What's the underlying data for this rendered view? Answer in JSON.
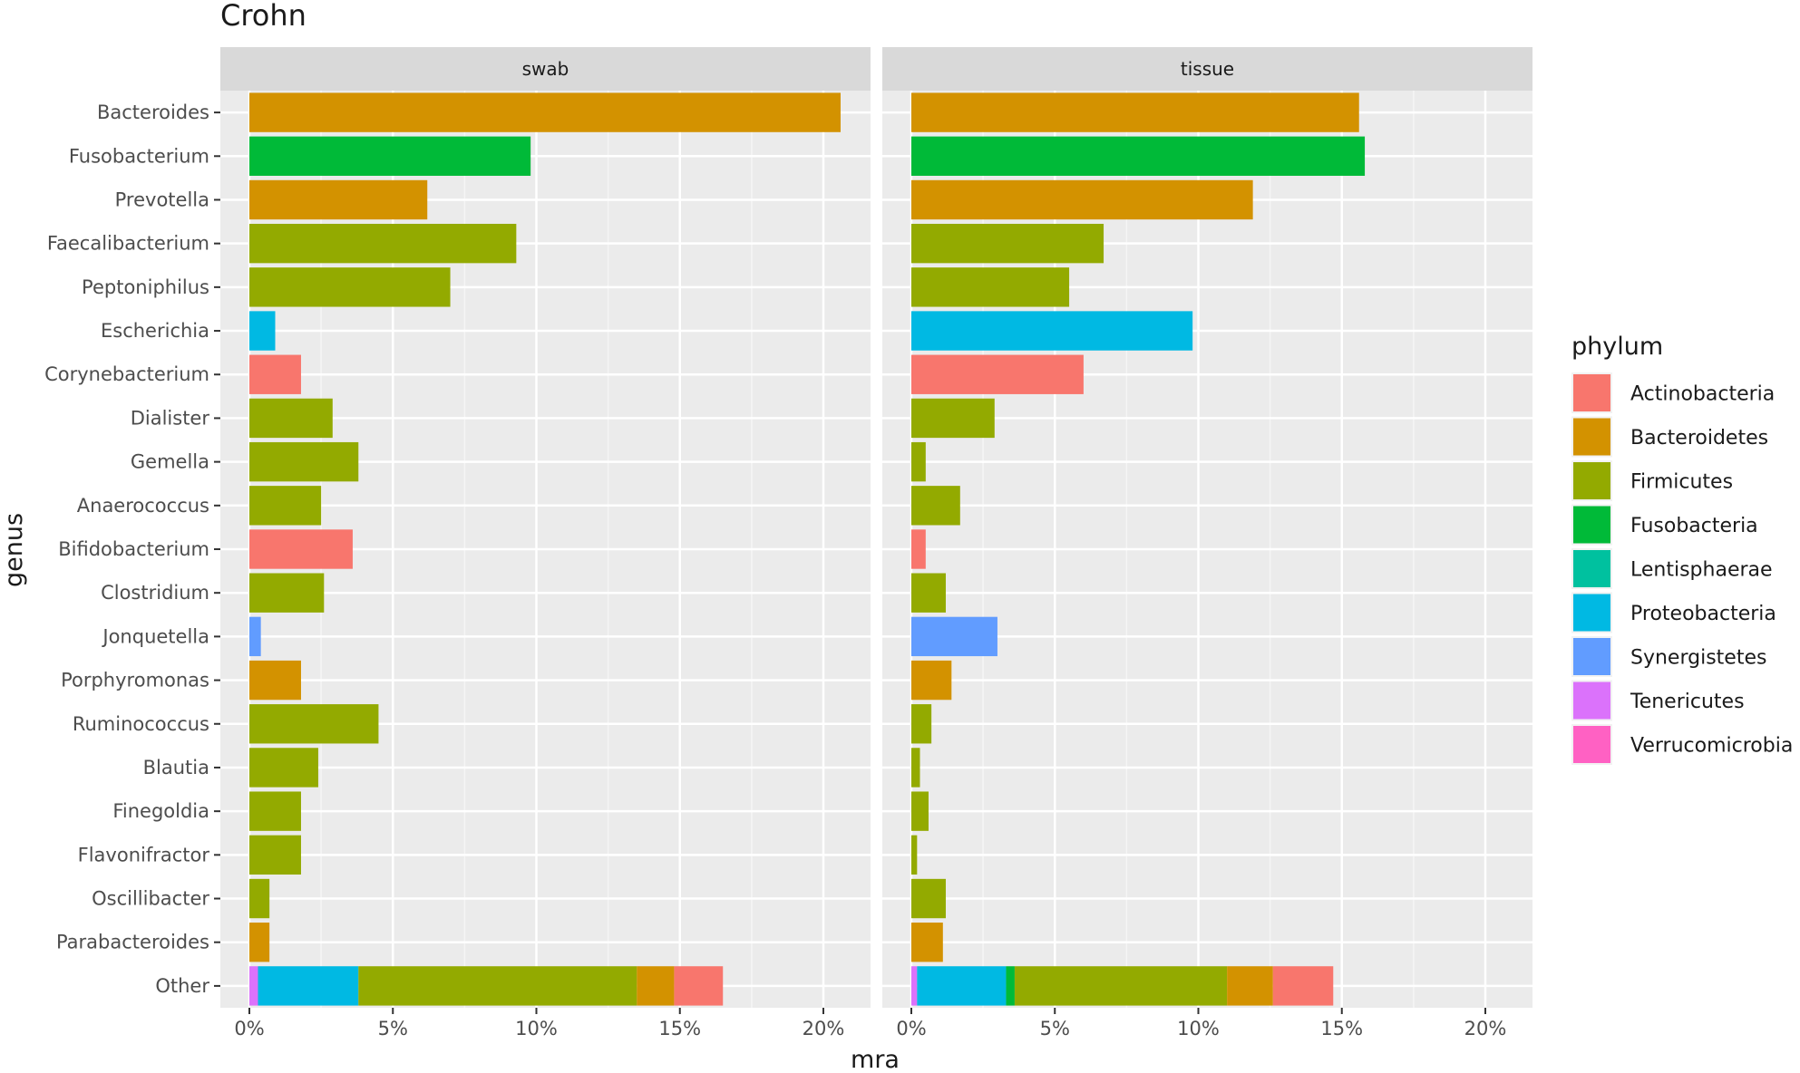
{
  "chart_data": {
    "type": "bar",
    "orientation": "horizontal",
    "stacked": true,
    "title": "Crohn",
    "xlabel": "mra",
    "ylabel": "genus",
    "x_ticks": [
      "0%",
      "5%",
      "10%",
      "15%",
      "20%"
    ],
    "xlim": [
      0,
      22.5
    ],
    "grid": true,
    "legend_title": "phylum",
    "legend_position": "right",
    "phyla": [
      {
        "name": "Actinobacteria",
        "color": "#F8766D"
      },
      {
        "name": "Bacteroidetes",
        "color": "#D39200"
      },
      {
        "name": "Firmicutes",
        "color": "#93AA00"
      },
      {
        "name": "Fusobacteria",
        "color": "#00BA38"
      },
      {
        "name": "Lentisphaerae",
        "color": "#00C19F"
      },
      {
        "name": "Proteobacteria",
        "color": "#00B9E3"
      },
      {
        "name": "Synergistetes",
        "color": "#619CFF"
      },
      {
        "name": "Tenericutes",
        "color": "#DB72FB"
      },
      {
        "name": "Verrucomicrobia",
        "color": "#FF61C3"
      }
    ],
    "categories": [
      "Bacteroides",
      "Fusobacterium",
      "Prevotella",
      "Faecalibacterium",
      "Peptoniphilus",
      "Escherichia",
      "Corynebacterium",
      "Dialister",
      "Gemella",
      "Anaerococcus",
      "Bifidobacterium",
      "Clostridium",
      "Jonquetella",
      "Porphyromonas",
      "Ruminococcus",
      "Blautia",
      "Finegoldia",
      "Flavonifractor",
      "Oscillibacter",
      "Parabacteroides",
      "Other"
    ],
    "panels": [
      {
        "name": "swab",
        "bars": [
          {
            "genus": "Bacteroides",
            "segments": [
              {
                "phylum": "Bacteroidetes",
                "value": 20.6
              }
            ]
          },
          {
            "genus": "Fusobacterium",
            "segments": [
              {
                "phylum": "Fusobacteria",
                "value": 9.8
              }
            ]
          },
          {
            "genus": "Prevotella",
            "segments": [
              {
                "phylum": "Bacteroidetes",
                "value": 6.2
              }
            ]
          },
          {
            "genus": "Faecalibacterium",
            "segments": [
              {
                "phylum": "Firmicutes",
                "value": 9.3
              }
            ]
          },
          {
            "genus": "Peptoniphilus",
            "segments": [
              {
                "phylum": "Firmicutes",
                "value": 7.0
              }
            ]
          },
          {
            "genus": "Escherichia",
            "segments": [
              {
                "phylum": "Proteobacteria",
                "value": 0.9
              }
            ]
          },
          {
            "genus": "Corynebacterium",
            "segments": [
              {
                "phylum": "Actinobacteria",
                "value": 1.8
              }
            ]
          },
          {
            "genus": "Dialister",
            "segments": [
              {
                "phylum": "Firmicutes",
                "value": 2.9
              }
            ]
          },
          {
            "genus": "Gemella",
            "segments": [
              {
                "phylum": "Firmicutes",
                "value": 3.8
              }
            ]
          },
          {
            "genus": "Anaerococcus",
            "segments": [
              {
                "phylum": "Firmicutes",
                "value": 2.5
              }
            ]
          },
          {
            "genus": "Bifidobacterium",
            "segments": [
              {
                "phylum": "Actinobacteria",
                "value": 3.6
              }
            ]
          },
          {
            "genus": "Clostridium",
            "segments": [
              {
                "phylum": "Firmicutes",
                "value": 2.6
              }
            ]
          },
          {
            "genus": "Jonquetella",
            "segments": [
              {
                "phylum": "Synergistetes",
                "value": 0.4
              }
            ]
          },
          {
            "genus": "Porphyromonas",
            "segments": [
              {
                "phylum": "Bacteroidetes",
                "value": 1.8
              }
            ]
          },
          {
            "genus": "Ruminococcus",
            "segments": [
              {
                "phylum": "Firmicutes",
                "value": 4.5
              }
            ]
          },
          {
            "genus": "Blautia",
            "segments": [
              {
                "phylum": "Firmicutes",
                "value": 2.4
              }
            ]
          },
          {
            "genus": "Finegoldia",
            "segments": [
              {
                "phylum": "Firmicutes",
                "value": 1.8
              }
            ]
          },
          {
            "genus": "Flavonifractor",
            "segments": [
              {
                "phylum": "Firmicutes",
                "value": 1.8
              }
            ]
          },
          {
            "genus": "Oscillibacter",
            "segments": [
              {
                "phylum": "Firmicutes",
                "value": 0.7
              }
            ]
          },
          {
            "genus": "Parabacteroides",
            "segments": [
              {
                "phylum": "Bacteroidetes",
                "value": 0.7
              }
            ]
          },
          {
            "genus": "Other",
            "segments": [
              {
                "phylum": "Tenericutes",
                "value": 0.3
              },
              {
                "phylum": "Proteobacteria",
                "value": 3.5
              },
              {
                "phylum": "Firmicutes",
                "value": 9.7
              },
              {
                "phylum": "Bacteroidetes",
                "value": 1.3
              },
              {
                "phylum": "Actinobacteria",
                "value": 1.7
              }
            ]
          }
        ]
      },
      {
        "name": "tissue",
        "bars": [
          {
            "genus": "Bacteroides",
            "segments": [
              {
                "phylum": "Bacteroidetes",
                "value": 15.6
              }
            ]
          },
          {
            "genus": "Fusobacterium",
            "segments": [
              {
                "phylum": "Fusobacteria",
                "value": 15.8
              }
            ]
          },
          {
            "genus": "Prevotella",
            "segments": [
              {
                "phylum": "Bacteroidetes",
                "value": 11.9
              }
            ]
          },
          {
            "genus": "Faecalibacterium",
            "segments": [
              {
                "phylum": "Firmicutes",
                "value": 6.7
              }
            ]
          },
          {
            "genus": "Peptoniphilus",
            "segments": [
              {
                "phylum": "Firmicutes",
                "value": 5.5
              }
            ]
          },
          {
            "genus": "Escherichia",
            "segments": [
              {
                "phylum": "Proteobacteria",
                "value": 9.8
              }
            ]
          },
          {
            "genus": "Corynebacterium",
            "segments": [
              {
                "phylum": "Actinobacteria",
                "value": 6.0
              }
            ]
          },
          {
            "genus": "Dialister",
            "segments": [
              {
                "phylum": "Firmicutes",
                "value": 2.9
              }
            ]
          },
          {
            "genus": "Gemella",
            "segments": [
              {
                "phylum": "Firmicutes",
                "value": 0.5
              }
            ]
          },
          {
            "genus": "Anaerococcus",
            "segments": [
              {
                "phylum": "Firmicutes",
                "value": 1.7
              }
            ]
          },
          {
            "genus": "Bifidobacterium",
            "segments": [
              {
                "phylum": "Actinobacteria",
                "value": 0.5
              }
            ]
          },
          {
            "genus": "Clostridium",
            "segments": [
              {
                "phylum": "Firmicutes",
                "value": 1.2
              }
            ]
          },
          {
            "genus": "Jonquetella",
            "segments": [
              {
                "phylum": "Synergistetes",
                "value": 3.0
              }
            ]
          },
          {
            "genus": "Porphyromonas",
            "segments": [
              {
                "phylum": "Bacteroidetes",
                "value": 1.4
              }
            ]
          },
          {
            "genus": "Ruminococcus",
            "segments": [
              {
                "phylum": "Firmicutes",
                "value": 0.7
              }
            ]
          },
          {
            "genus": "Blautia",
            "segments": [
              {
                "phylum": "Firmicutes",
                "value": 0.3
              }
            ]
          },
          {
            "genus": "Finegoldia",
            "segments": [
              {
                "phylum": "Firmicutes",
                "value": 0.6
              }
            ]
          },
          {
            "genus": "Flavonifractor",
            "segments": [
              {
                "phylum": "Firmicutes",
                "value": 0.2
              }
            ]
          },
          {
            "genus": "Oscillibacter",
            "segments": [
              {
                "phylum": "Firmicutes",
                "value": 1.2
              }
            ]
          },
          {
            "genus": "Parabacteroides",
            "segments": [
              {
                "phylum": "Bacteroidetes",
                "value": 1.1
              }
            ]
          },
          {
            "genus": "Other",
            "segments": [
              {
                "phylum": "Tenericutes",
                "value": 0.2
              },
              {
                "phylum": "Proteobacteria",
                "value": 3.1
              },
              {
                "phylum": "Fusobacteria",
                "value": 0.3
              },
              {
                "phylum": "Firmicutes",
                "value": 7.4
              },
              {
                "phylum": "Bacteroidetes",
                "value": 1.6
              },
              {
                "phylum": "Actinobacteria",
                "value": 2.1
              }
            ]
          }
        ]
      }
    ]
  }
}
